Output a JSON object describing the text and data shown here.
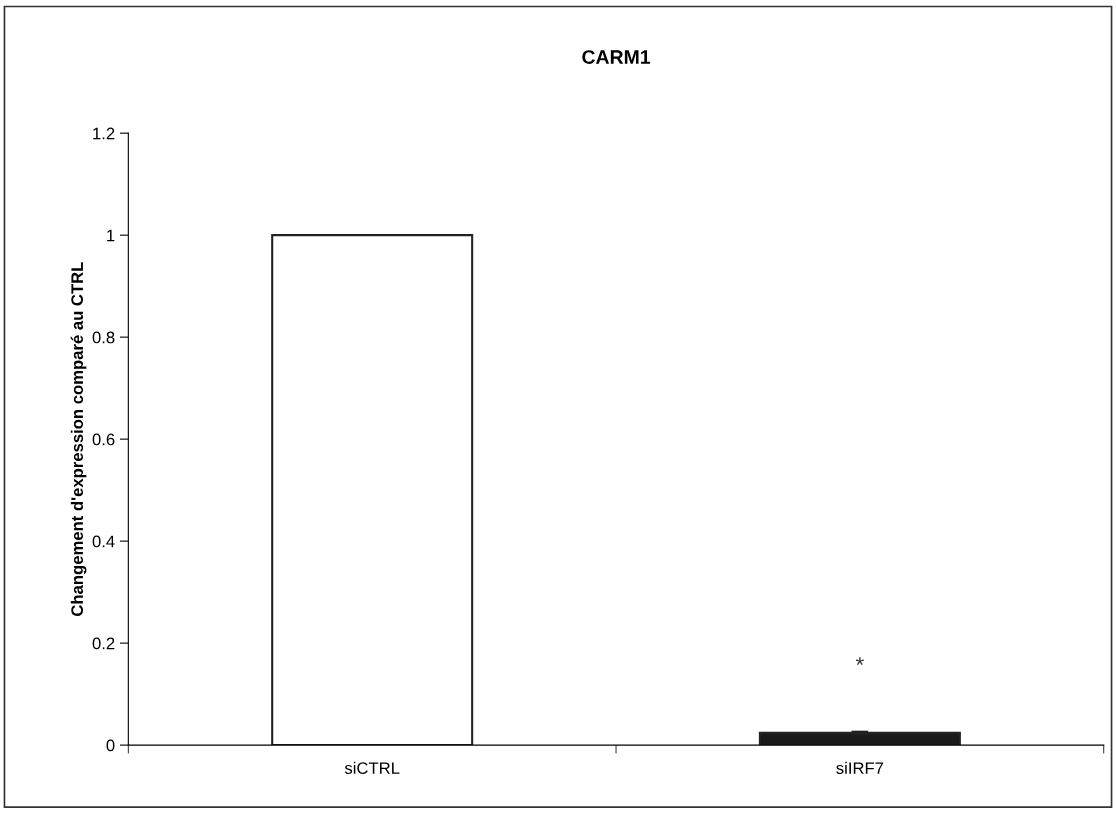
{
  "chart_data": {
    "type": "bar",
    "title": "CARM1",
    "ylabel": "Changement d'expression comparé au CTRL",
    "categories": [
      "siCTRL",
      "siIRF7"
    ],
    "values": [
      1.0,
      0.024
    ],
    "colors": [
      "#ffffff",
      "#1a1a1a"
    ],
    "errors": [
      null,
      0.003
    ],
    "ylim": [
      0,
      1.2
    ],
    "yticks": [
      0,
      0.2,
      0.4,
      0.6,
      0.8,
      1,
      1.2
    ],
    "annotations": [
      "*"
    ],
    "grid": false,
    "legend": false
  }
}
